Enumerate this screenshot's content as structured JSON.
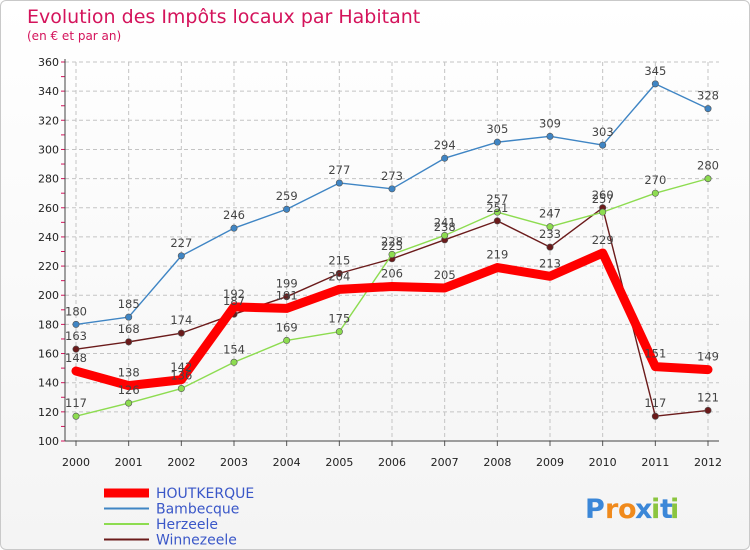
{
  "chart_data": {
    "type": "line",
    "title": "Evolution des Impôts locaux par Habitant",
    "subtitle": "(en € et par an)",
    "x": [
      "2000",
      "2001",
      "2002",
      "2003",
      "2004",
      "2005",
      "2006",
      "2007",
      "2008",
      "2009",
      "2010",
      "2011",
      "2012"
    ],
    "ylim": [
      100,
      360
    ],
    "yticks": [
      "100",
      "120",
      "140",
      "160",
      "180",
      "200",
      "220",
      "240",
      "260",
      "280",
      "300",
      "320",
      "340",
      "360"
    ],
    "grid": true,
    "legend_position": "bottom-left",
    "series": [
      {
        "name": "HOUTKERQUE",
        "color": "#ff0000",
        "values": [
          148,
          138,
          142,
          192,
          191,
          204,
          206,
          205,
          219,
          213,
          229,
          151,
          149
        ]
      },
      {
        "name": "Bambecque",
        "color": "#3f85c4",
        "values": [
          180,
          185,
          227,
          246,
          259,
          277,
          273,
          294,
          305,
          309,
          303,
          345,
          328
        ]
      },
      {
        "name": "Herzeele",
        "color": "#8ddc50",
        "values": [
          117,
          126,
          136,
          154,
          169,
          175,
          228,
          241,
          257,
          247,
          257,
          270,
          280
        ]
      },
      {
        "name": "Winnezeele",
        "color": "#6b1b1b",
        "values": [
          163,
          168,
          174,
          187,
          199,
          215,
          225,
          238,
          251,
          233,
          260,
          117,
          121
        ]
      }
    ]
  },
  "brand": {
    "letters": [
      "P",
      "r",
      "o",
      "x",
      "i",
      "t",
      "i"
    ],
    "colors": [
      "#3b87d8",
      "#f08a1c",
      "#f08a1c",
      "#3b87d8",
      "#8bc53f",
      "#3b87d8",
      "#8bc53f"
    ]
  }
}
